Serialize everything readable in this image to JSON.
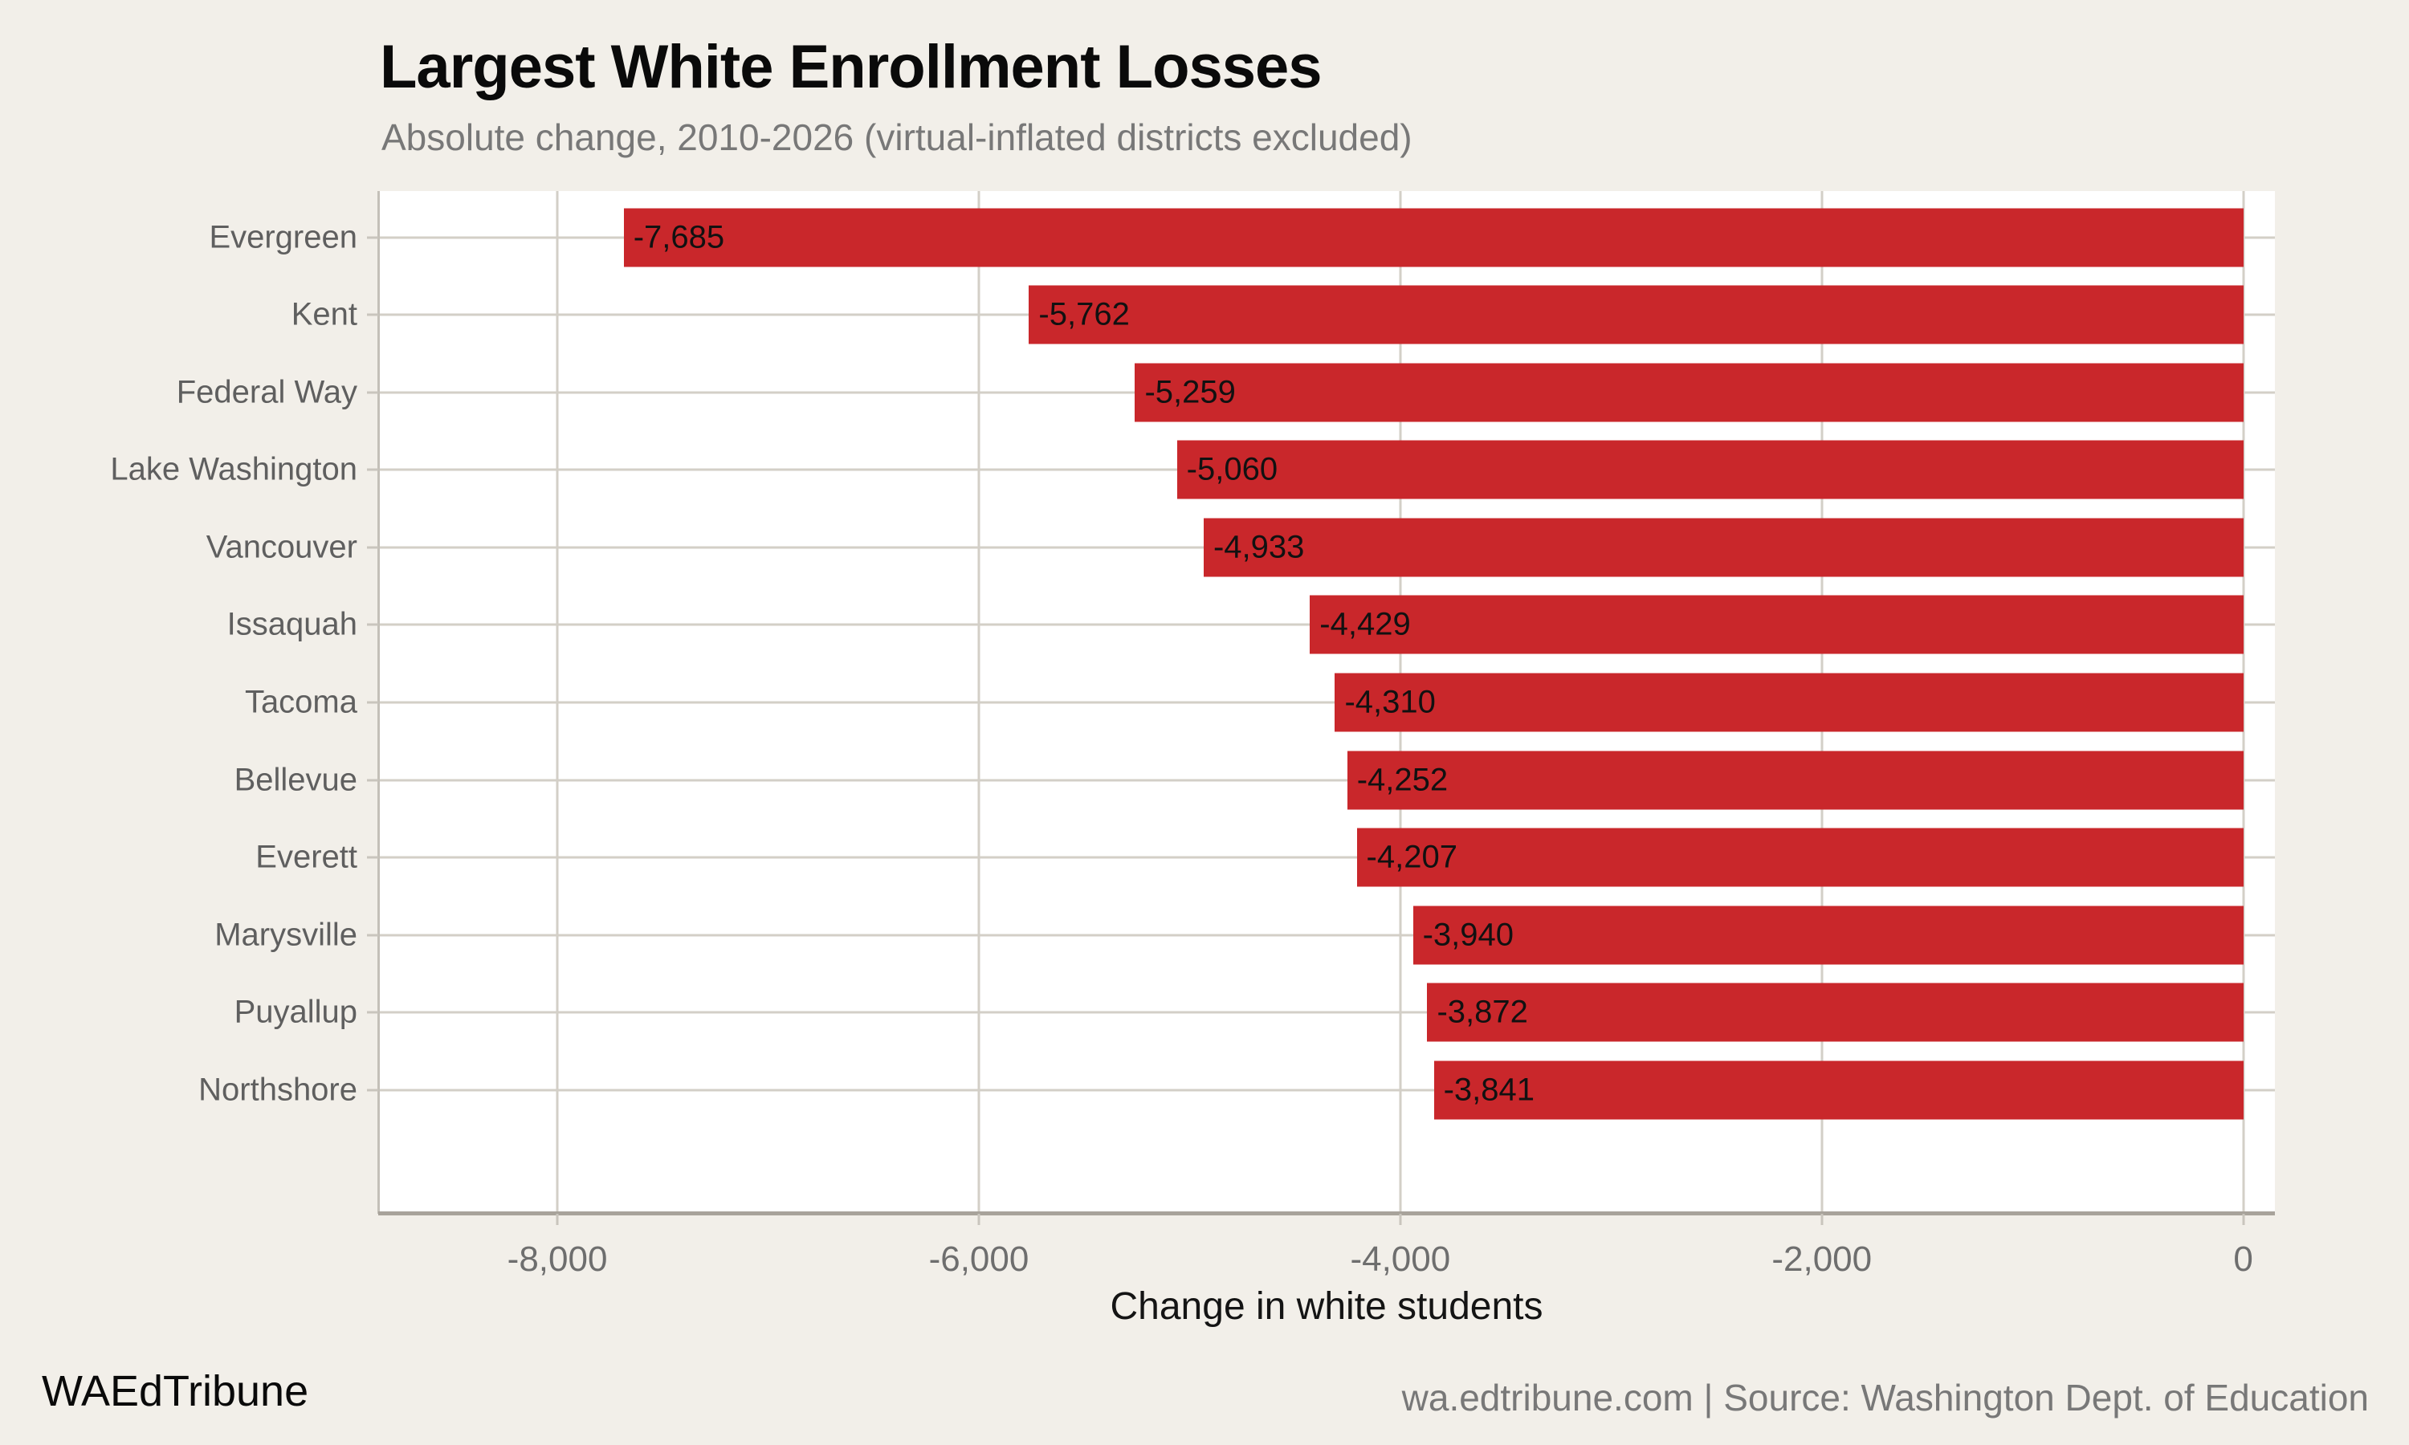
{
  "title": "Largest White Enrollment Losses",
  "subtitle": "Absolute change, 2010-2026 (virtual-inflated districts excluded)",
  "footer": {
    "left": "WAEdTribune",
    "right": "wa.edtribune.com | Source: Washington Dept. of Education"
  },
  "colors": {
    "background": "#f2efe9",
    "panel": "#ffffff",
    "bar": "#c9272b",
    "grid": "#d3cfc7",
    "axis_line_left": "#c4c0b8",
    "axis_line_bottom": "#a8a39b",
    "tick_mark": "#c9c5bd",
    "title_text": "#0a0a0a",
    "muted_text": "#787878",
    "category_text": "#5f5f5f",
    "tick_text": "#6e6e6e",
    "value_text": "#111111"
  },
  "chart_data": {
    "type": "bar",
    "orientation": "horizontal",
    "title": "Largest White Enrollment Losses",
    "subtitle": "Absolute change, 2010-2026 (virtual-inflated districts excluded)",
    "xlabel": "Change in white students",
    "ylabel": "",
    "grid": true,
    "legend": false,
    "xlim": [
      -8850,
      150
    ],
    "categories": [
      "Evergreen",
      "Kent",
      "Federal Way",
      "Lake Washington",
      "Vancouver",
      "Issaquah",
      "Tacoma",
      "Bellevue",
      "Everett",
      "Marysville",
      "Puyallup",
      "Northshore"
    ],
    "values": [
      -7685,
      -5762,
      -5259,
      -5060,
      -4933,
      -4429,
      -4310,
      -4252,
      -4207,
      -3940,
      -3872,
      -3841
    ],
    "value_labels": [
      "-7,685",
      "-5,762",
      "-5,259",
      "-5,060",
      "-4,933",
      "-4,429",
      "-4,310",
      "-4,252",
      "-4,207",
      "-3,940",
      "-3,872",
      "-3,841"
    ],
    "x_ticks": [
      {
        "value": -8000,
        "label": "-8,000"
      },
      {
        "value": -6000,
        "label": "-6,000"
      },
      {
        "value": -4000,
        "label": "-4,000"
      },
      {
        "value": -2000,
        "label": "-2,000"
      },
      {
        "value": 0,
        "label": "0"
      }
    ]
  }
}
